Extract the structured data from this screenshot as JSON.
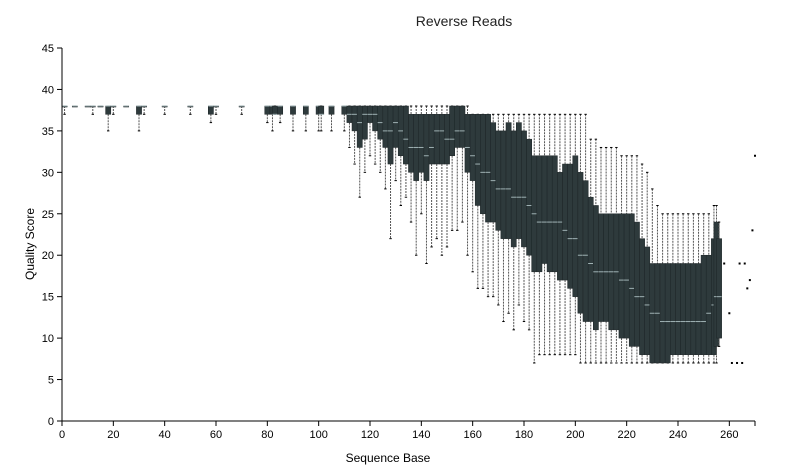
{
  "chart_data": {
    "type": "box",
    "title": "Reverse Reads",
    "xlabel": "Sequence Base",
    "ylabel": "Quality Score",
    "xlim": [
      0,
      270
    ],
    "ylim": [
      0,
      45
    ],
    "xticks": [
      0,
      20,
      40,
      60,
      80,
      100,
      120,
      140,
      160,
      180,
      200,
      220,
      240,
      260
    ],
    "yticks": [
      0,
      5,
      10,
      15,
      20,
      25,
      30,
      35,
      40,
      45
    ],
    "box_color": "#2e3a3c",
    "whisker_color": "#555555",
    "stats_keys": [
      "base",
      "whisker_low",
      "q1",
      "median",
      "q3",
      "whisker_high"
    ],
    "boxes": [
      [
        1,
        37,
        38,
        38,
        38,
        38
      ],
      [
        5,
        38,
        38,
        38,
        38,
        38
      ],
      [
        10,
        38,
        38,
        38,
        38,
        38
      ],
      [
        12,
        37,
        38,
        38,
        38,
        38
      ],
      [
        15,
        38,
        38,
        38,
        38,
        38
      ],
      [
        18,
        35,
        37,
        38,
        38,
        38
      ],
      [
        20,
        37,
        38,
        38,
        38,
        38
      ],
      [
        25,
        38,
        38,
        38,
        38,
        38
      ],
      [
        30,
        35,
        37,
        38,
        38,
        38
      ],
      [
        32,
        37,
        38,
        38,
        38,
        38
      ],
      [
        40,
        37,
        38,
        38,
        38,
        38
      ],
      [
        50,
        37,
        38,
        38,
        38,
        38
      ],
      [
        58,
        36,
        37,
        38,
        38,
        38
      ],
      [
        60,
        37,
        38,
        38,
        38,
        38
      ],
      [
        70,
        37,
        38,
        38,
        38,
        38
      ],
      [
        80,
        36,
        37,
        38,
        38,
        38
      ],
      [
        82,
        35,
        37,
        38,
        38,
        38
      ],
      [
        83,
        37,
        37,
        37,
        38,
        38
      ],
      [
        85,
        36,
        37,
        38,
        38,
        38
      ],
      [
        90,
        35,
        37,
        38,
        38,
        38
      ],
      [
        95,
        35,
        37,
        38,
        38,
        38
      ],
      [
        100,
        35,
        37,
        38,
        38,
        38
      ],
      [
        101,
        35,
        37,
        37,
        38,
        38
      ],
      [
        105,
        35,
        37,
        38,
        38,
        38
      ],
      [
        110,
        35,
        37,
        38,
        38,
        38
      ],
      [
        112,
        33,
        36,
        37,
        38,
        38
      ],
      [
        114,
        31,
        35,
        37,
        38,
        38
      ],
      [
        116,
        27,
        33,
        36,
        38,
        38
      ],
      [
        118,
        30,
        34,
        37,
        38,
        38
      ],
      [
        120,
        32,
        36,
        37,
        38,
        38
      ],
      [
        122,
        31,
        35,
        37,
        38,
        38
      ],
      [
        124,
        30,
        34,
        36,
        38,
        38
      ],
      [
        126,
        28,
        33,
        35,
        38,
        38
      ],
      [
        128,
        22,
        31,
        35,
        38,
        38
      ],
      [
        130,
        29,
        33,
        36,
        38,
        38
      ],
      [
        132,
        26,
        32,
        35,
        38,
        38
      ],
      [
        134,
        27,
        31,
        34,
        38,
        38
      ],
      [
        136,
        24,
        30,
        33,
        37,
        38
      ],
      [
        138,
        20,
        29,
        33,
        37,
        38
      ],
      [
        140,
        25,
        30,
        33,
        37,
        38
      ],
      [
        142,
        19,
        29,
        32,
        37,
        38
      ],
      [
        144,
        21,
        31,
        33,
        37,
        38
      ],
      [
        146,
        22,
        31,
        35,
        37,
        38
      ],
      [
        148,
        20,
        31,
        35,
        37,
        38
      ],
      [
        150,
        21,
        31,
        34,
        37,
        38
      ],
      [
        152,
        23,
        32,
        34,
        38,
        38
      ],
      [
        154,
        23,
        33,
        35,
        38,
        38
      ],
      [
        156,
        24,
        33,
        35,
        38,
        38
      ],
      [
        158,
        20,
        30,
        33,
        37,
        38
      ],
      [
        160,
        18,
        29,
        32,
        37,
        37
      ],
      [
        162,
        16,
        26,
        31,
        37,
        37
      ],
      [
        164,
        16,
        25,
        30,
        37,
        37
      ],
      [
        166,
        15,
        24,
        30,
        37,
        37
      ],
      [
        168,
        15,
        24,
        29,
        36,
        37
      ],
      [
        170,
        14,
        23,
        28,
        35,
        37
      ],
      [
        172,
        12,
        22,
        28,
        35,
        37
      ],
      [
        174,
        13,
        22,
        28,
        36,
        37
      ],
      [
        176,
        11,
        21,
        27,
        35,
        37
      ],
      [
        178,
        14,
        22,
        27,
        36,
        37
      ],
      [
        180,
        12,
        21,
        27,
        35,
        37
      ],
      [
        182,
        11,
        20,
        26,
        34,
        37
      ],
      [
        184,
        7,
        18,
        25,
        32,
        37
      ],
      [
        186,
        8,
        18,
        24,
        32,
        37
      ],
      [
        188,
        8,
        19,
        24,
        32,
        37
      ],
      [
        190,
        8,
        18,
        24,
        32,
        37
      ],
      [
        192,
        8,
        18,
        24,
        32,
        37
      ],
      [
        194,
        8,
        17,
        24,
        30,
        37
      ],
      [
        196,
        8,
        17,
        23,
        31,
        37
      ],
      [
        198,
        8,
        16,
        22,
        31,
        37
      ],
      [
        200,
        8,
        15,
        22,
        32,
        37
      ],
      [
        202,
        7,
        13,
        20,
        30,
        37
      ],
      [
        204,
        7,
        12,
        20,
        29,
        37
      ],
      [
        206,
        7,
        12,
        19,
        27,
        34
      ],
      [
        208,
        7,
        11,
        18,
        26,
        34
      ],
      [
        210,
        7,
        12,
        18,
        25,
        33
      ],
      [
        212,
        7,
        12,
        18,
        25,
        33
      ],
      [
        214,
        7,
        11,
        18,
        25,
        33
      ],
      [
        216,
        7,
        11,
        18,
        25,
        33
      ],
      [
        218,
        7,
        10,
        17,
        25,
        32
      ],
      [
        220,
        7,
        10,
        17,
        25,
        32
      ],
      [
        222,
        7,
        9,
        16,
        25,
        32
      ],
      [
        224,
        7,
        9,
        15,
        24,
        32
      ],
      [
        226,
        7,
        8,
        15,
        22,
        31
      ],
      [
        228,
        7,
        8,
        14,
        21,
        30
      ],
      [
        230,
        7,
        7,
        13,
        19,
        28
      ],
      [
        232,
        7,
        7,
        13,
        19,
        26
      ],
      [
        234,
        7,
        7,
        12,
        19,
        25
      ],
      [
        236,
        7,
        7,
        12,
        19,
        25
      ],
      [
        238,
        7,
        8,
        12,
        19,
        25
      ],
      [
        240,
        7,
        8,
        12,
        19,
        25
      ],
      [
        242,
        7,
        8,
        12,
        19,
        25
      ],
      [
        244,
        7,
        8,
        12,
        19,
        25
      ],
      [
        246,
        7,
        8,
        12,
        19,
        25
      ],
      [
        248,
        7,
        8,
        12,
        19,
        25
      ],
      [
        250,
        7,
        8,
        12,
        20,
        25
      ],
      [
        252,
        7,
        8,
        13,
        20,
        25
      ],
      [
        254,
        7,
        8,
        14,
        22,
        26
      ],
      [
        255,
        7,
        9,
        15,
        24,
        26
      ],
      [
        256,
        9,
        10,
        15,
        22,
        24
      ]
    ],
    "outliers": [
      [
        258,
        19
      ],
      [
        261,
        7
      ],
      [
        263,
        7
      ],
      [
        264,
        19
      ],
      [
        265,
        7
      ],
      [
        266,
        19
      ],
      [
        267,
        16
      ],
      [
        268,
        17
      ],
      [
        269,
        23
      ],
      [
        270,
        32
      ],
      [
        260,
        13
      ]
    ]
  }
}
